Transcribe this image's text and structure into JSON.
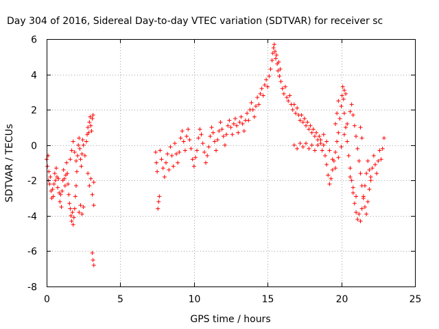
{
  "chart_data": {
    "type": "scatter",
    "title": "Day 304 of 2016, Sidereal Day-to-day VTEC variation (SDTVAR) for receiver sc",
    "xlabel": "GPS time / hours",
    "ylabel": "SDTVAR / TECUs",
    "xlim": [
      0,
      25
    ],
    "ylim": [
      -8,
      6
    ],
    "x_ticks": [
      "0",
      "5",
      "10",
      "15",
      "20",
      "25"
    ],
    "y_ticks": [
      "-8",
      "-6",
      "-4",
      "-2",
      "0",
      "2",
      "4",
      "6"
    ],
    "grid": true,
    "marker": "+",
    "color": "#ff0000",
    "series": [
      {
        "points": [
          [
            0.0,
            -0.8
          ],
          [
            0.05,
            -1.2
          ],
          [
            0.1,
            -0.6
          ],
          [
            0.12,
            -2.0
          ],
          [
            0.15,
            -1.5
          ],
          [
            0.2,
            -2.2
          ],
          [
            0.25,
            -1.8
          ],
          [
            0.3,
            -2.6
          ],
          [
            0.35,
            -3.0
          ],
          [
            0.4,
            -2.5
          ],
          [
            0.45,
            -2.9
          ],
          [
            0.5,
            -2.2
          ],
          [
            0.55,
            -1.6
          ],
          [
            0.6,
            -2.0
          ],
          [
            0.65,
            -1.3
          ],
          [
            0.7,
            -1.8
          ],
          [
            0.75,
            -2.4
          ],
          [
            0.8,
            -1.9
          ],
          [
            0.85,
            -2.7
          ],
          [
            0.9,
            -3.2
          ],
          [
            0.95,
            -2.8
          ],
          [
            1.0,
            -3.5
          ],
          [
            1.05,
            -2.6
          ],
          [
            1.1,
            -2.0
          ],
          [
            1.15,
            -1.4
          ],
          [
            1.2,
            -1.9
          ],
          [
            1.25,
            -2.3
          ],
          [
            1.3,
            -1.7
          ],
          [
            1.35,
            -1.0
          ],
          [
            1.4,
            -1.6
          ],
          [
            1.45,
            -2.2
          ],
          [
            1.5,
            -2.8
          ],
          [
            1.55,
            -3.3
          ],
          [
            1.6,
            -3.6
          ],
          [
            1.65,
            -4.0
          ],
          [
            1.7,
            -4.3
          ],
          [
            1.75,
            -3.8
          ],
          [
            1.8,
            -4.5
          ],
          [
            1.85,
            -4.1
          ],
          [
            1.9,
            -3.6
          ],
          [
            1.95,
            -2.9
          ],
          [
            2.0,
            -2.3
          ],
          [
            1.6,
            -0.8
          ],
          [
            1.7,
            -0.3
          ],
          [
            1.8,
            0.2
          ],
          [
            1.9,
            -0.4
          ],
          [
            2.0,
            -0.9
          ],
          [
            2.05,
            -1.5
          ],
          [
            2.1,
            -0.6
          ],
          [
            2.15,
            0.0
          ],
          [
            2.2,
            0.4
          ],
          [
            2.25,
            -0.2
          ],
          [
            2.3,
            -0.8
          ],
          [
            2.35,
            -1.2
          ],
          [
            2.4,
            -0.5
          ],
          [
            2.45,
            0.3
          ],
          [
            2.5,
            0.0
          ],
          [
            2.2,
            -3.8
          ],
          [
            2.3,
            -3.4
          ],
          [
            2.4,
            -3.9
          ],
          [
            2.5,
            -3.5
          ],
          [
            2.6,
            -0.6
          ],
          [
            2.7,
            0.2
          ],
          [
            2.75,
            0.6
          ],
          [
            2.8,
            1.0
          ],
          [
            2.85,
            0.7
          ],
          [
            2.9,
            1.3
          ],
          [
            2.95,
            1.6
          ],
          [
            3.0,
            1.1
          ],
          [
            3.05,
            0.8
          ],
          [
            3.1,
            1.5
          ],
          [
            3.15,
            1.7
          ],
          [
            2.8,
            -1.6
          ],
          [
            2.9,
            -2.3
          ],
          [
            3.0,
            -1.9
          ],
          [
            3.1,
            -2.8
          ],
          [
            3.2,
            -2.1
          ],
          [
            3.2,
            -3.4
          ],
          [
            3.1,
            -6.1
          ],
          [
            3.15,
            -6.5
          ],
          [
            3.2,
            -6.8
          ],
          [
            7.4,
            -0.4
          ],
          [
            7.45,
            -1.0
          ],
          [
            7.5,
            -1.5
          ],
          [
            7.55,
            -3.6
          ],
          [
            7.6,
            -3.2
          ],
          [
            7.65,
            -2.9
          ],
          [
            7.7,
            -0.3
          ],
          [
            7.8,
            -0.8
          ],
          [
            7.9,
            -1.3
          ],
          [
            8.0,
            -1.8
          ],
          [
            8.1,
            -1.0
          ],
          [
            8.2,
            -0.5
          ],
          [
            8.3,
            -1.4
          ],
          [
            8.4,
            -0.1
          ],
          [
            8.5,
            -0.6
          ],
          [
            8.6,
            -1.2
          ],
          [
            8.7,
            0.1
          ],
          [
            8.8,
            -0.5
          ],
          [
            8.9,
            -1.0
          ],
          [
            9.0,
            -0.4
          ],
          [
            9.1,
            0.4
          ],
          [
            9.2,
            0.8
          ],
          [
            9.3,
            0.2
          ],
          [
            9.4,
            -0.3
          ],
          [
            9.5,
            0.5
          ],
          [
            9.6,
            0.9
          ],
          [
            9.7,
            0.3
          ],
          [
            9.8,
            -0.2
          ],
          [
            9.9,
            -0.8
          ],
          [
            10.0,
            -1.2
          ],
          [
            10.1,
            -0.7
          ],
          [
            10.2,
            -0.3
          ],
          [
            10.3,
            0.4
          ],
          [
            10.4,
            0.9
          ],
          [
            10.5,
            0.6
          ],
          [
            10.6,
            0.1
          ],
          [
            10.7,
            -0.4
          ],
          [
            10.8,
            -1.0
          ],
          [
            10.9,
            -0.6
          ],
          [
            11.0,
            -0.1
          ],
          [
            11.1,
            0.5
          ],
          [
            11.2,
            1.0
          ],
          [
            11.3,
            0.7
          ],
          [
            11.4,
            0.2
          ],
          [
            11.5,
            -0.3
          ],
          [
            11.6,
            0.3
          ],
          [
            11.7,
            0.8
          ],
          [
            11.8,
            1.3
          ],
          [
            11.9,
            0.9
          ],
          [
            12.0,
            0.5
          ],
          [
            12.1,
            0.0
          ],
          [
            12.2,
            0.6
          ],
          [
            12.3,
            1.1
          ],
          [
            12.4,
            1.4
          ],
          [
            12.5,
            1.0
          ],
          [
            12.6,
            0.6
          ],
          [
            12.7,
            1.2
          ],
          [
            12.8,
            1.5
          ],
          [
            12.9,
            1.1
          ],
          [
            13.0,
            0.7
          ],
          [
            13.1,
            1.3
          ],
          [
            13.2,
            1.6
          ],
          [
            13.3,
            1.2
          ],
          [
            13.4,
            0.8
          ],
          [
            13.5,
            1.4
          ],
          [
            13.6,
            1.8
          ],
          [
            13.7,
            1.4
          ],
          [
            13.8,
            2.0
          ],
          [
            13.9,
            2.4
          ],
          [
            14.0,
            2.0
          ],
          [
            14.1,
            1.6
          ],
          [
            14.2,
            2.2
          ],
          [
            14.3,
            2.7
          ],
          [
            14.4,
            2.3
          ],
          [
            14.5,
            2.9
          ],
          [
            14.6,
            3.2
          ],
          [
            14.7,
            2.8
          ],
          [
            14.8,
            3.4
          ],
          [
            14.9,
            3.7
          ],
          [
            15.0,
            3.3
          ],
          [
            15.1,
            3.9
          ],
          [
            15.2,
            4.3
          ],
          [
            15.3,
            4.8
          ],
          [
            15.35,
            5.2
          ],
          [
            15.4,
            5.5
          ],
          [
            15.45,
            5.7
          ],
          [
            15.5,
            5.3
          ],
          [
            15.55,
            4.9
          ],
          [
            15.6,
            5.1
          ],
          [
            15.65,
            4.6
          ],
          [
            15.7,
            4.2
          ],
          [
            15.75,
            4.7
          ],
          [
            15.8,
            3.9
          ],
          [
            15.85,
            4.3
          ],
          [
            15.9,
            3.6
          ],
          [
            16.0,
            3.2
          ],
          [
            16.1,
            2.9
          ],
          [
            16.2,
            3.3
          ],
          [
            16.3,
            2.7
          ],
          [
            16.4,
            2.5
          ],
          [
            16.5,
            2.8
          ],
          [
            16.6,
            2.3
          ],
          [
            16.7,
            2.0
          ],
          [
            16.8,
            2.3
          ],
          [
            16.9,
            1.8
          ],
          [
            17.0,
            2.1
          ],
          [
            17.1,
            1.7
          ],
          [
            17.2,
            1.4
          ],
          [
            17.3,
            1.7
          ],
          [
            17.4,
            1.3
          ],
          [
            17.5,
            1.5
          ],
          [
            17.6,
            1.1
          ],
          [
            17.7,
            1.3
          ],
          [
            17.8,
            0.9
          ],
          [
            17.9,
            1.1
          ],
          [
            18.0,
            0.7
          ],
          [
            18.1,
            0.9
          ],
          [
            18.2,
            0.5
          ],
          [
            18.3,
            0.7
          ],
          [
            18.4,
            0.3
          ],
          [
            18.5,
            0.5
          ],
          [
            18.6,
            0.1
          ],
          [
            18.7,
            -0.3
          ],
          [
            18.8,
            0.0
          ],
          [
            18.9,
            -0.6
          ],
          [
            19.0,
            -1.1
          ],
          [
            19.1,
            -1.7
          ],
          [
            19.2,
            -2.2
          ],
          [
            19.3,
            -1.9
          ],
          [
            19.4,
            -1.4
          ],
          [
            19.5,
            -0.9
          ],
          [
            19.6,
            -0.4
          ],
          [
            19.7,
            0.2
          ],
          [
            19.8,
            0.7
          ],
          [
            19.9,
            1.5
          ],
          [
            20.0,
            2.2
          ],
          [
            20.05,
            2.8
          ],
          [
            20.1,
            3.3
          ],
          [
            20.15,
            2.6
          ],
          [
            20.2,
            1.8
          ],
          [
            20.3,
            1.0
          ],
          [
            20.4,
            0.2
          ],
          [
            20.5,
            -0.6
          ],
          [
            20.6,
            -1.3
          ],
          [
            20.7,
            -2.0
          ],
          [
            20.8,
            -2.7
          ],
          [
            20.9,
            -3.3
          ],
          [
            21.0,
            -3.8
          ],
          [
            21.1,
            -4.2
          ],
          [
            21.2,
            -3.9
          ],
          [
            21.3,
            -4.3
          ],
          [
            21.4,
            -3.6
          ],
          [
            21.5,
            -3.0
          ],
          [
            21.6,
            -2.3
          ],
          [
            21.7,
            -1.6
          ],
          [
            21.8,
            -0.9
          ],
          [
            21.9,
            -1.4
          ],
          [
            22.0,
            -2.0
          ],
          [
            22.1,
            -1.3
          ],
          [
            22.2,
            -0.6
          ],
          [
            22.3,
            -1.1
          ],
          [
            22.4,
            -1.6
          ],
          [
            22.5,
            -0.9
          ],
          [
            22.6,
            -0.3
          ],
          [
            22.7,
            -0.8
          ],
          [
            22.8,
            -0.2
          ],
          [
            22.9,
            0.4
          ],
          [
            16.8,
            0.0
          ],
          [
            17.0,
            -0.2
          ],
          [
            17.2,
            0.1
          ],
          [
            17.4,
            -0.1
          ],
          [
            17.6,
            0.1
          ],
          [
            17.8,
            -0.2
          ],
          [
            18.0,
            0.0
          ],
          [
            18.2,
            -0.3
          ],
          [
            18.4,
            0.0
          ],
          [
            18.6,
            0.3
          ],
          [
            18.8,
            0.6
          ],
          [
            19.0,
            0.2
          ],
          [
            19.2,
            -0.3
          ],
          [
            19.4,
            -0.8
          ],
          [
            19.6,
            -1.3
          ],
          [
            19.8,
            -0.7
          ],
          [
            20.0,
            -0.1
          ],
          [
            20.2,
            0.6
          ],
          [
            20.4,
            1.2
          ],
          [
            20.6,
            1.9
          ],
          [
            20.7,
            2.3
          ],
          [
            20.8,
            1.7
          ],
          [
            20.9,
            1.1
          ],
          [
            21.0,
            0.5
          ],
          [
            21.1,
            -0.2
          ],
          [
            21.2,
            -0.9
          ],
          [
            21.3,
            -1.6
          ],
          [
            21.4,
            -2.3
          ],
          [
            21.5,
            -2.9
          ],
          [
            21.6,
            -3.5
          ],
          [
            21.7,
            -3.9
          ],
          [
            21.8,
            -3.2
          ],
          [
            21.9,
            -2.5
          ],
          [
            22.0,
            -1.8
          ],
          [
            20.6,
            -1.8
          ],
          [
            20.8,
            -2.4
          ],
          [
            21.0,
            -2.9
          ],
          [
            19.6,
            1.2
          ],
          [
            19.7,
            1.8
          ],
          [
            19.8,
            2.5
          ],
          [
            20.3,
            2.9
          ],
          [
            20.2,
            3.1
          ],
          [
            21.3,
            1.0
          ],
          [
            21.4,
            0.4
          ]
        ]
      }
    ]
  }
}
